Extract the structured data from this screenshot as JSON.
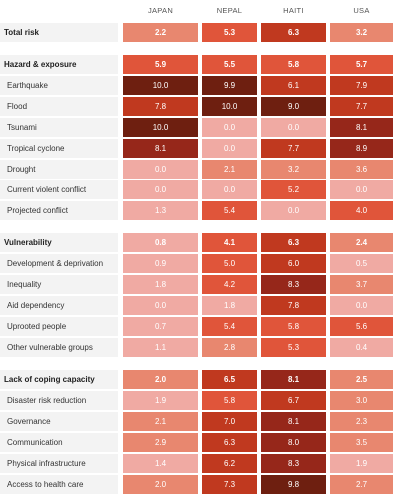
{
  "columns": [
    "JAPAN",
    "NEPAL",
    "HAITI",
    "USA"
  ],
  "chart_data": {
    "type": "heatmap",
    "columns": [
      "JAPAN",
      "NEPAL",
      "HAITI",
      "USA"
    ],
    "sections": [
      {
        "header": {
          "label": "Total risk",
          "values": [
            2.2,
            5.3,
            6.3,
            3.2
          ]
        },
        "rows": []
      },
      {
        "header": {
          "label": "Hazard & exposure",
          "values": [
            5.9,
            5.5,
            5.8,
            5.7
          ]
        },
        "rows": [
          {
            "label": "Earthquake",
            "values": [
              10.0,
              9.9,
              6.1,
              7.9
            ]
          },
          {
            "label": "Flood",
            "values": [
              7.8,
              10.0,
              9.0,
              7.7
            ]
          },
          {
            "label": "Tsunami",
            "values": [
              10.0,
              0.0,
              0.0,
              8.1
            ]
          },
          {
            "label": "Tropical cyclone",
            "values": [
              8.1,
              0.0,
              7.7,
              8.9
            ]
          },
          {
            "label": "Drought",
            "values": [
              0.0,
              2.1,
              3.2,
              3.6
            ]
          },
          {
            "label": "Current violent conflict",
            "values": [
              0.0,
              0.0,
              5.2,
              0.0
            ]
          },
          {
            "label": "Projected conflict",
            "values": [
              1.3,
              5.4,
              0.0,
              4.0
            ]
          }
        ]
      },
      {
        "header": {
          "label": "Vulnerability",
          "values": [
            0.8,
            4.1,
            6.3,
            2.4
          ]
        },
        "rows": [
          {
            "label": "Development & deprivation",
            "values": [
              0.9,
              5.0,
              6.0,
              0.5
            ]
          },
          {
            "label": "Inequality",
            "values": [
              1.8,
              4.2,
              8.3,
              3.7
            ]
          },
          {
            "label": "Aid dependency",
            "values": [
              0.0,
              1.8,
              7.8,
              0.0
            ]
          },
          {
            "label": "Uprooted people",
            "values": [
              0.7,
              5.4,
              5.8,
              5.6
            ]
          },
          {
            "label": "Other vulnerable groups",
            "values": [
              1.1,
              2.8,
              5.3,
              0.4
            ]
          }
        ]
      },
      {
        "header": {
          "label": "Lack of coping capacity",
          "values": [
            2.0,
            6.5,
            8.1,
            2.5
          ]
        },
        "rows": [
          {
            "label": "Disaster risk reduction",
            "values": [
              1.9,
              5.8,
              6.7,
              3.0
            ]
          },
          {
            "label": "Governance",
            "values": [
              2.1,
              7.0,
              8.1,
              2.3
            ]
          },
          {
            "label": "Communication",
            "values": [
              2.9,
              6.3,
              8.0,
              3.5
            ]
          },
          {
            "label": "Physical infrastructure",
            "values": [
              1.4,
              6.2,
              8.3,
              1.9
            ]
          },
          {
            "label": "Access to health care",
            "values": [
              2.0,
              7.3,
              9.8,
              2.7
            ]
          }
        ]
      }
    ],
    "scale": [
      0,
      10
    ],
    "colors": {
      "0-2": "#f0aaa3",
      "2-4": "#e8876f",
      "4-6": "#e0553a",
      "6-8": "#c0391f",
      "8-9": "#96271a",
      "9-10": "#6e1f10",
      "header_bar": "#e8523a"
    }
  }
}
